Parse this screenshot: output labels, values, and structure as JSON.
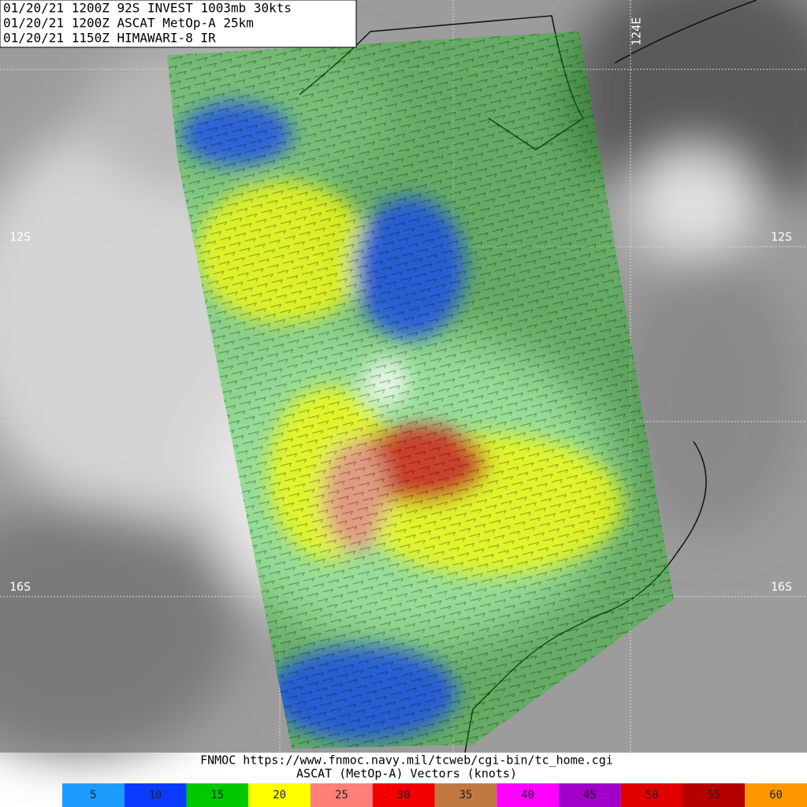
{
  "header": {
    "lines": [
      "01/20/21 1200Z  92S INVEST 1003mb 30kts",
      "01/20/21 1200Z  ASCAT MetOp-A 25km",
      "01/20/21 1150Z  HIMAWARI-8 IR"
    ]
  },
  "grid_labels": {
    "lon": "124E",
    "lat_top_left": "12S",
    "lat_top_right": "12S",
    "lat_bottom_left": "16S",
    "lat_bottom_right": "16S"
  },
  "footer": {
    "source": "FNMOC https://www.fnmoc.navy.mil/tcweb/cgi-bin/tc_home.cgi",
    "caption": "ASCAT (MetOp-A) Vectors (knots)"
  },
  "legend": [
    {
      "value": 5,
      "color": "#1e9bff"
    },
    {
      "value": 10,
      "color": "#0a3cff"
    },
    {
      "value": 15,
      "color": "#00c800"
    },
    {
      "value": 20,
      "color": "#ffff00"
    },
    {
      "value": 25,
      "color": "#ff8078"
    },
    {
      "value": 30,
      "color": "#f00000"
    },
    {
      "value": 35,
      "color": "#c07840"
    },
    {
      "value": 40,
      "color": "#ff00ff"
    },
    {
      "value": 45,
      "color": "#a000c8"
    },
    {
      "value": 50,
      "color": "#e00000"
    },
    {
      "value": 55,
      "color": "#b40000"
    },
    {
      "value": 60,
      "color": "#ff9600"
    }
  ]
}
